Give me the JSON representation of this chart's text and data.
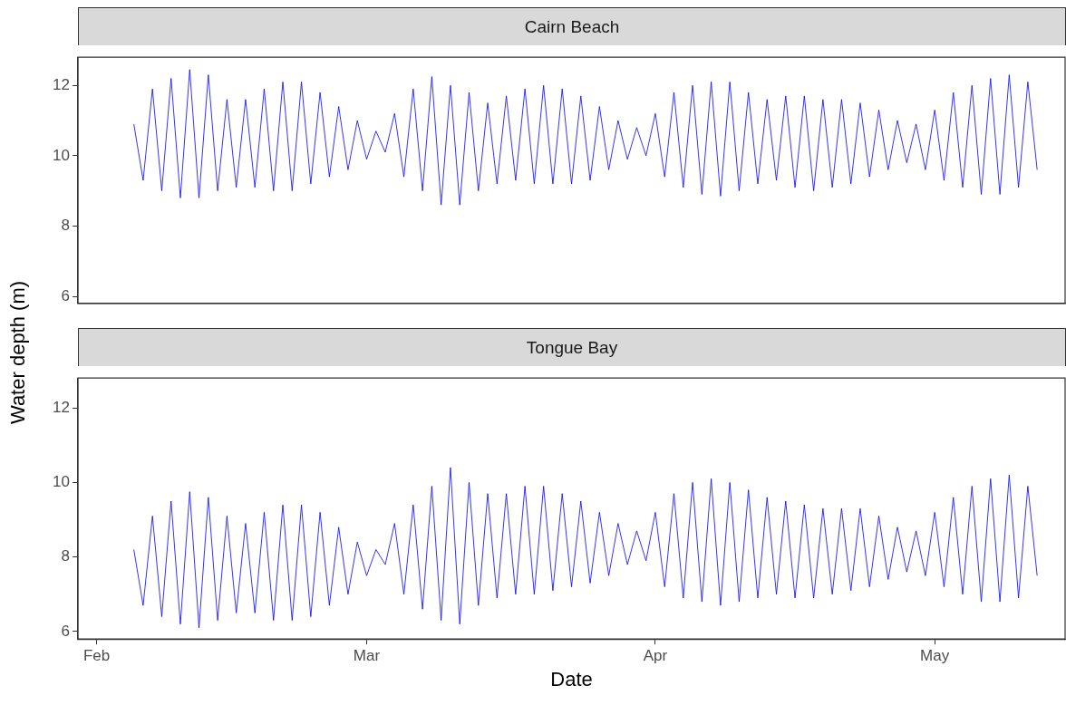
{
  "chart_data": [
    {
      "type": "line",
      "title": "Cairn Beach",
      "ylabel": "Water depth (m)",
      "tick_labels": "y",
      "xlim": [
        "--01-30",
        "--05-15"
      ],
      "ylim": [
        5.8,
        12.8
      ],
      "yticks": [
        6,
        8,
        10,
        12
      ],
      "xticks": [
        {
          "value": "--02-01",
          "label": "Feb"
        },
        {
          "value": "--03-01",
          "label": "Mar"
        },
        {
          "value": "--04-01",
          "label": "Apr"
        },
        {
          "value": "--05-01",
          "label": "May"
        }
      ],
      "x": [
        "--02-05",
        "--02-06",
        "--02-07",
        "--02-08",
        "--02-09",
        "--02-10",
        "--02-11",
        "--02-12",
        "--02-13",
        "--02-14",
        "--02-15",
        "--02-16",
        "--02-17",
        "--02-18",
        "--02-19",
        "--02-20",
        "--02-21",
        "--02-22",
        "--02-23",
        "--02-24",
        "--02-25",
        "--02-26",
        "--02-27",
        "--02-28",
        "--02-29",
        "--03-01",
        "--03-02",
        "--03-03",
        "--03-04",
        "--03-05",
        "--03-06",
        "--03-07",
        "--03-08",
        "--03-09",
        "--03-10",
        "--03-11",
        "--03-12",
        "--03-13",
        "--03-14",
        "--03-15",
        "--03-16",
        "--03-17",
        "--03-18",
        "--03-19",
        "--03-20",
        "--03-21",
        "--03-22",
        "--03-23",
        "--03-24",
        "--03-25",
        "--03-26",
        "--03-27",
        "--03-28",
        "--03-29",
        "--03-30",
        "--03-31",
        "--04-01",
        "--04-02",
        "--04-03",
        "--04-04",
        "--04-05",
        "--04-06",
        "--04-07",
        "--04-08",
        "--04-09",
        "--04-10",
        "--04-11",
        "--04-12",
        "--04-13",
        "--04-14",
        "--04-15",
        "--04-16",
        "--04-17",
        "--04-18",
        "--04-19",
        "--04-20",
        "--04-21",
        "--04-22",
        "--04-23",
        "--04-24",
        "--04-25",
        "--04-26",
        "--04-27",
        "--04-28",
        "--04-29",
        "--04-30",
        "--05-01",
        "--05-02",
        "--05-03",
        "--05-04",
        "--05-05",
        "--05-06",
        "--05-07",
        "--05-08",
        "--05-09",
        "--05-10",
        "--05-11",
        "--05-12"
      ],
      "series": [
        {
          "color": "#0000ff",
          "values": [
            10.9,
            9.3,
            11.9,
            9.0,
            12.2,
            8.8,
            12.45,
            8.8,
            12.3,
            9.0,
            11.6,
            9.1,
            11.6,
            9.1,
            11.9,
            9.0,
            12.1,
            9.0,
            12.1,
            9.2,
            11.8,
            9.4,
            11.4,
            9.6,
            11.0,
            9.9,
            10.7,
            10.1,
            11.2,
            9.4,
            11.9,
            9.0,
            12.25,
            8.6,
            12.0,
            8.6,
            11.8,
            9.0,
            11.5,
            9.2,
            11.7,
            9.3,
            11.9,
            9.2,
            12.0,
            9.2,
            11.9,
            9.2,
            11.7,
            9.3,
            11.4,
            9.6,
            11.0,
            9.9,
            10.8,
            10.0,
            11.2,
            9.4,
            11.8,
            9.1,
            12.0,
            8.9,
            12.1,
            8.85,
            12.1,
            9.0,
            11.8,
            9.2,
            11.6,
            9.3,
            11.7,
            9.1,
            11.7,
            9.0,
            11.6,
            9.1,
            11.6,
            9.2,
            11.5,
            9.4,
            11.3,
            9.6,
            11.0,
            9.8,
            10.9,
            9.6,
            11.3,
            9.3,
            11.8,
            9.1,
            12.0,
            8.9,
            12.2,
            8.9,
            12.3,
            9.1,
            12.1,
            9.6
          ]
        }
      ]
    },
    {
      "type": "line",
      "title": "Tongue Bay",
      "xlabel": "Date",
      "xlim": [
        "--01-30",
        "--05-15"
      ],
      "ylim": [
        5.8,
        12.8
      ],
      "yticks": [
        6,
        8,
        10,
        12
      ],
      "xticks": [
        {
          "value": "--02-01",
          "label": "Feb"
        },
        {
          "value": "--03-01",
          "label": "Mar"
        },
        {
          "value": "--04-01",
          "label": "Apr"
        },
        {
          "value": "--05-01",
          "label": "May"
        }
      ],
      "x": [
        "--02-05",
        "--02-06",
        "--02-07",
        "--02-08",
        "--02-09",
        "--02-10",
        "--02-11",
        "--02-12",
        "--02-13",
        "--02-14",
        "--02-15",
        "--02-16",
        "--02-17",
        "--02-18",
        "--02-19",
        "--02-20",
        "--02-21",
        "--02-22",
        "--02-23",
        "--02-24",
        "--02-25",
        "--02-26",
        "--02-27",
        "--02-28",
        "--02-29",
        "--03-01",
        "--03-02",
        "--03-03",
        "--03-04",
        "--03-05",
        "--03-06",
        "--03-07",
        "--03-08",
        "--03-09",
        "--03-10",
        "--03-11",
        "--03-12",
        "--03-13",
        "--03-14",
        "--03-15",
        "--03-16",
        "--03-17",
        "--03-18",
        "--03-19",
        "--03-20",
        "--03-21",
        "--03-22",
        "--03-23",
        "--03-24",
        "--03-25",
        "--03-26",
        "--03-27",
        "--03-28",
        "--03-29",
        "--03-30",
        "--03-31",
        "--04-01",
        "--04-02",
        "--04-03",
        "--04-04",
        "--04-05",
        "--04-06",
        "--04-07",
        "--04-08",
        "--04-09",
        "--04-10",
        "--04-11",
        "--04-12",
        "--04-13",
        "--04-14",
        "--04-15",
        "--04-16",
        "--04-17",
        "--04-18",
        "--04-19",
        "--04-20",
        "--04-21",
        "--04-22",
        "--04-23",
        "--04-24",
        "--04-25",
        "--04-26",
        "--04-27",
        "--04-28",
        "--04-29",
        "--04-30",
        "--05-01",
        "--05-02",
        "--05-03",
        "--05-04",
        "--05-05",
        "--05-06",
        "--05-07",
        "--05-08",
        "--05-09",
        "--05-10",
        "--05-11",
        "--05-12"
      ],
      "series": [
        {
          "color": "#0000ff",
          "values": [
            8.2,
            6.7,
            9.1,
            6.4,
            9.5,
            6.2,
            9.75,
            6.1,
            9.6,
            6.3,
            9.1,
            6.5,
            8.9,
            6.5,
            9.2,
            6.3,
            9.4,
            6.3,
            9.4,
            6.4,
            9.2,
            6.7,
            8.8,
            7.0,
            8.4,
            7.5,
            8.2,
            7.8,
            8.9,
            7.0,
            9.4,
            6.6,
            9.9,
            6.3,
            10.4,
            6.2,
            10.0,
            6.7,
            9.7,
            6.9,
            9.7,
            7.0,
            9.9,
            7.0,
            9.9,
            7.1,
            9.7,
            7.2,
            9.5,
            7.3,
            9.2,
            7.5,
            8.9,
            7.8,
            8.7,
            7.9,
            9.2,
            7.2,
            9.7,
            6.9,
            10.0,
            6.8,
            10.1,
            6.7,
            10.0,
            6.8,
            9.8,
            6.9,
            9.6,
            7.0,
            9.5,
            6.9,
            9.4,
            6.9,
            9.3,
            7.0,
            9.3,
            7.1,
            9.3,
            7.2,
            9.1,
            7.4,
            8.8,
            7.6,
            8.7,
            7.5,
            9.2,
            7.2,
            9.6,
            7.0,
            9.9,
            6.8,
            10.1,
            6.8,
            10.2,
            6.9,
            9.9,
            7.5
          ]
        }
      ]
    }
  ]
}
